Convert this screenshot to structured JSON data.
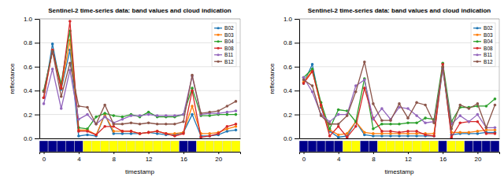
{
  "chart_data": [
    {
      "type": "line",
      "title": "Sentinel-2 time-series data: band values and cloud indication",
      "ylabel": "reflectance",
      "x": [
        0,
        1,
        2,
        3,
        4,
        5,
        6,
        7,
        8,
        9,
        10,
        11,
        12,
        13,
        14,
        15,
        16,
        17,
        18,
        19,
        20,
        21,
        22
      ],
      "xlim": [
        -0.5,
        22.5
      ],
      "ylim": [
        0,
        1.0
      ],
      "yticks": [
        {
          "value": 0.0,
          "label": "0.0"
        },
        0.2,
        0.4,
        0.6,
        0.8,
        {
          "value": 1.0,
          "label": "1.0"
        }
      ],
      "tick_labels": "y",
      "grid": true,
      "legend": "upper right",
      "marker": "circle",
      "series": [
        {
          "name": "B02",
          "color": "#1f77b4",
          "values": [
            0.34,
            0.79,
            0.41,
            0.74,
            0.02,
            0.03,
            0.02,
            0.2,
            0.04,
            0.04,
            0.04,
            0.04,
            0.05,
            0.04,
            0.03,
            0.03,
            0.05,
            0.2,
            0.02,
            0.02,
            0.03,
            0.06,
            0.07
          ]
        },
        {
          "name": "B03",
          "color": "#ff7f0e",
          "values": [
            0.34,
            0.74,
            0.42,
            0.82,
            0.07,
            0.07,
            0.03,
            0.2,
            0.06,
            0.06,
            0.06,
            0.04,
            0.05,
            0.06,
            0.04,
            0.04,
            0.05,
            0.27,
            0.04,
            0.04,
            0.05,
            0.08,
            0.1
          ]
        },
        {
          "name": "B04",
          "color": "#2ca02c",
          "values": [
            0.4,
            0.73,
            0.46,
            0.9,
            0.09,
            0.08,
            0.18,
            0.21,
            0.19,
            0.18,
            0.2,
            0.18,
            0.22,
            0.18,
            0.18,
            0.18,
            0.2,
            0.42,
            0.19,
            0.19,
            0.2,
            0.2,
            0.2
          ]
        },
        {
          "name": "B08",
          "color": "#d62728",
          "values": [
            0.34,
            0.74,
            0.42,
            0.98,
            0.06,
            0.06,
            0.03,
            0.1,
            0.1,
            0.06,
            0.06,
            0.04,
            0.05,
            0.06,
            0.04,
            0.02,
            0.04,
            0.4,
            0.01,
            0.02,
            0.04,
            0.1,
            0.12
          ]
        },
        {
          "name": "B11",
          "color": "#9467bd",
          "values": [
            0.29,
            0.58,
            0.25,
            0.57,
            0.16,
            0.2,
            0.12,
            0.18,
            0.13,
            0.16,
            0.19,
            0.19,
            0.2,
            0.19,
            0.19,
            0.19,
            0.2,
            0.52,
            0.2,
            0.21,
            0.21,
            0.22,
            0.23
          ]
        },
        {
          "name": "B12",
          "color": "#8c564b",
          "values": [
            0.39,
            0.73,
            0.35,
            0.63,
            0.27,
            0.26,
            0.12,
            0.28,
            0.12,
            0.12,
            0.13,
            0.12,
            0.13,
            0.12,
            0.12,
            0.12,
            0.14,
            0.53,
            0.21,
            0.22,
            0.23,
            0.27,
            0.31
          ]
        }
      ]
    },
    {
      "type": "heatmap",
      "xlabel": "timestamp",
      "x": [
        0,
        1,
        2,
        3,
        4,
        5,
        6,
        7,
        8,
        9,
        10,
        11,
        12,
        13,
        14,
        15,
        16,
        17,
        18,
        19,
        20,
        21,
        22
      ],
      "values": [
        1,
        1,
        1,
        1,
        1,
        0,
        0,
        0,
        0,
        0,
        0,
        0,
        0,
        0,
        0,
        0,
        1,
        1,
        0,
        0,
        0,
        0,
        0
      ],
      "colors": [
        "#00008b",
        "#00008b",
        "#00008b",
        "#00008b",
        "#00008b",
        "#ffff00",
        "#ffff00",
        "#ffff00",
        "#ffff00",
        "#ffff00",
        "#ffff00",
        "#ffff00",
        "#ffff00",
        "#ffff00",
        "#ffff00",
        "#ffff00",
        "#00008b",
        "#00008b",
        "#ffff00",
        "#ffff00",
        "#ffff00",
        "#ffff00",
        "#ffff00"
      ],
      "xlim": [
        -0.5,
        22.5
      ],
      "xticks": [
        0,
        4,
        8,
        12,
        16,
        20
      ],
      "tick_labels": "x"
    },
    {
      "type": "line",
      "title": "Sentinel-2 time-series data: band values and cloud indication",
      "ylabel": "reflectance",
      "x": [
        0,
        1,
        2,
        3,
        4,
        5,
        6,
        7,
        8,
        9,
        10,
        11,
        12,
        13,
        14,
        15,
        16,
        17,
        18,
        19,
        20,
        21,
        22
      ],
      "xlim": [
        -0.5,
        22.5
      ],
      "ylim": [
        0,
        1.0
      ],
      "yticks": [
        {
          "value": 0.0,
          "label": "0.0"
        },
        0.2,
        0.4,
        0.6,
        0.8,
        {
          "value": 1.0,
          "label": "1.0"
        }
      ],
      "tick_labels": "y",
      "grid": true,
      "legend": "upper right",
      "marker": "circle",
      "series": [
        {
          "name": "B02",
          "color": "#1f77b4",
          "values": [
            0.46,
            0.62,
            0.26,
            0.06,
            0.01,
            0.02,
            0.14,
            0.03,
            0.02,
            0.02,
            0.02,
            0.02,
            0.02,
            0.02,
            0.02,
            0.02,
            0.59,
            0.03,
            0.04,
            0.04,
            0.04,
            0.05,
            0.05
          ]
        },
        {
          "name": "B03",
          "color": "#ff7f0e",
          "values": [
            0.47,
            0.57,
            0.27,
            0.07,
            0.03,
            0.04,
            0.14,
            0.05,
            0.04,
            0.04,
            0.04,
            0.04,
            0.04,
            0.04,
            0.04,
            0.04,
            0.6,
            0.05,
            0.05,
            0.05,
            0.06,
            0.07,
            0.07
          ]
        },
        {
          "name": "B04",
          "color": "#2ca02c",
          "values": [
            0.51,
            0.58,
            0.3,
            0.08,
            0.24,
            0.23,
            0.14,
            0.5,
            0.08,
            0.12,
            0.12,
            0.12,
            0.13,
            0.13,
            0.17,
            0.16,
            0.63,
            0.14,
            0.26,
            0.26,
            0.27,
            0.27,
            0.33
          ]
        },
        {
          "name": "B08",
          "color": "#d62728",
          "values": [
            0.46,
            0.56,
            0.28,
            0.02,
            0.1,
            0.01,
            0.1,
            0.42,
            0.17,
            0.06,
            0.06,
            0.05,
            0.06,
            0.06,
            0.03,
            0.02,
            0.62,
            0.01,
            0.13,
            0.14,
            0.14,
            0.04,
            0.04
          ]
        },
        {
          "name": "B11",
          "color": "#9467bd",
          "values": [
            0.51,
            0.39,
            0.2,
            0.14,
            0.2,
            0.2,
            0.44,
            0.49,
            0.16,
            0.25,
            0.16,
            0.26,
            0.25,
            0.19,
            0.13,
            0.14,
            0.58,
            0.12,
            0.19,
            0.14,
            0.2,
            0.09,
            0.09
          ]
        },
        {
          "name": "B12",
          "color": "#8c564b",
          "values": [
            0.49,
            0.44,
            0.19,
            0.12,
            0.12,
            0.19,
            0.39,
            0.64,
            0.29,
            0.15,
            0.15,
            0.29,
            0.17,
            0.3,
            0.28,
            0.13,
            0.6,
            0.08,
            0.28,
            0.25,
            0.29,
            0.09,
            0.28
          ]
        }
      ]
    },
    {
      "type": "heatmap",
      "xlabel": "timestamp",
      "x": [
        0,
        1,
        2,
        3,
        4,
        5,
        6,
        7,
        8,
        9,
        10,
        11,
        12,
        13,
        14,
        15,
        16,
        17,
        18,
        19,
        20,
        21,
        22
      ],
      "values": [
        1,
        1,
        1,
        1,
        1,
        0,
        0,
        1,
        1,
        0,
        0,
        0,
        0,
        0,
        0,
        0,
        1,
        0,
        0,
        1,
        1,
        1,
        1
      ],
      "colors": [
        "#00008b",
        "#00008b",
        "#00008b",
        "#00008b",
        "#00008b",
        "#ffff00",
        "#ffff00",
        "#00008b",
        "#00008b",
        "#ffff00",
        "#ffff00",
        "#ffff00",
        "#ffff00",
        "#ffff00",
        "#ffff00",
        "#ffff00",
        "#00008b",
        "#ffff00",
        "#ffff00",
        "#00008b",
        "#00008b",
        "#00008b",
        "#00008b"
      ],
      "xlim": [
        -0.5,
        22.5
      ],
      "xticks": [
        0,
        4,
        8,
        12,
        16,
        20
      ],
      "tick_labels": "x"
    }
  ]
}
